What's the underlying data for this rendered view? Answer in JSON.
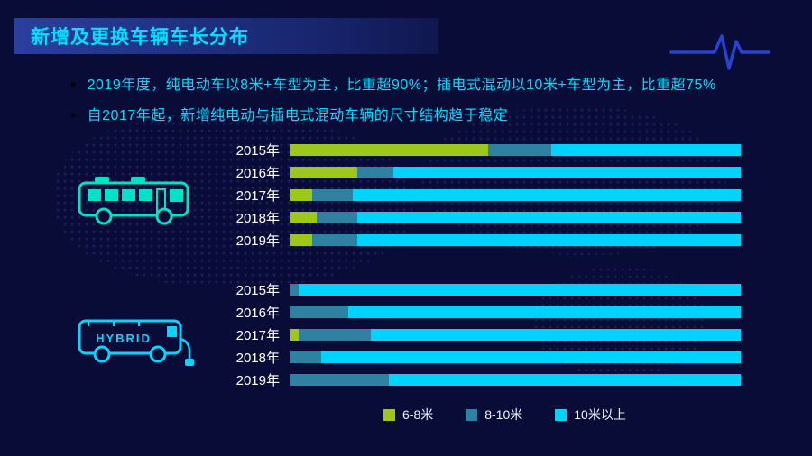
{
  "title": "新增及更换车辆车长分布",
  "bullets": [
    "2019年度，纯电动车以8米+车型为主，比重超90%；插电式混动以10米+车型为主，比重超75%",
    "自2017年起，新增纯电动与插电式混动车辆的尺寸结构趋于稳定"
  ],
  "icons": {
    "bullet_marker": "●"
  },
  "buses": {
    "hybrid_label": "HYBRID"
  },
  "colors": {
    "background": "#0a0c38",
    "title_accent": "#00e0ff",
    "title_bar": "#1b2d7e",
    "ecg_line": "#2743cf",
    "electric_bus": "#00e2c8",
    "hybrid_bus": "#00d6ff"
  },
  "legend": {
    "position": "bottom",
    "items": [
      {
        "label": "6-8米",
        "color": "#9ec71c"
      },
      {
        "label": "8-10米",
        "color": "#2e81a0"
      },
      {
        "label": "10米以上",
        "color": "#00d3ff"
      }
    ]
  },
  "chart_data": [
    {
      "type": "bar",
      "id": "pure-electric",
      "orientation": "horizontal",
      "stacked": true,
      "unit": "%",
      "xlim": [
        0,
        100
      ],
      "grid": false,
      "categories": [
        "2015年",
        "2016年",
        "2017年",
        "2018年",
        "2019年"
      ],
      "series": [
        {
          "name": "6-8米",
          "values": [
            44,
            15,
            5,
            6,
            5
          ]
        },
        {
          "name": "8-10米",
          "values": [
            14,
            8,
            9,
            9,
            10
          ]
        },
        {
          "name": "10米以上",
          "values": [
            42,
            77,
            86,
            85,
            85
          ]
        }
      ]
    },
    {
      "type": "bar",
      "id": "plug-in-hybrid",
      "orientation": "horizontal",
      "stacked": true,
      "unit": "%",
      "xlim": [
        0,
        100
      ],
      "grid": false,
      "categories": [
        "2015年",
        "2016年",
        "2017年",
        "2018年",
        "2019年"
      ],
      "series": [
        {
          "name": "6-8米",
          "values": [
            0,
            0,
            2,
            0,
            0
          ]
        },
        {
          "name": "8-10米",
          "values": [
            2,
            13,
            16,
            7,
            22
          ]
        },
        {
          "name": "10米以上",
          "values": [
            98,
            87,
            82,
            93,
            78
          ]
        }
      ]
    }
  ]
}
